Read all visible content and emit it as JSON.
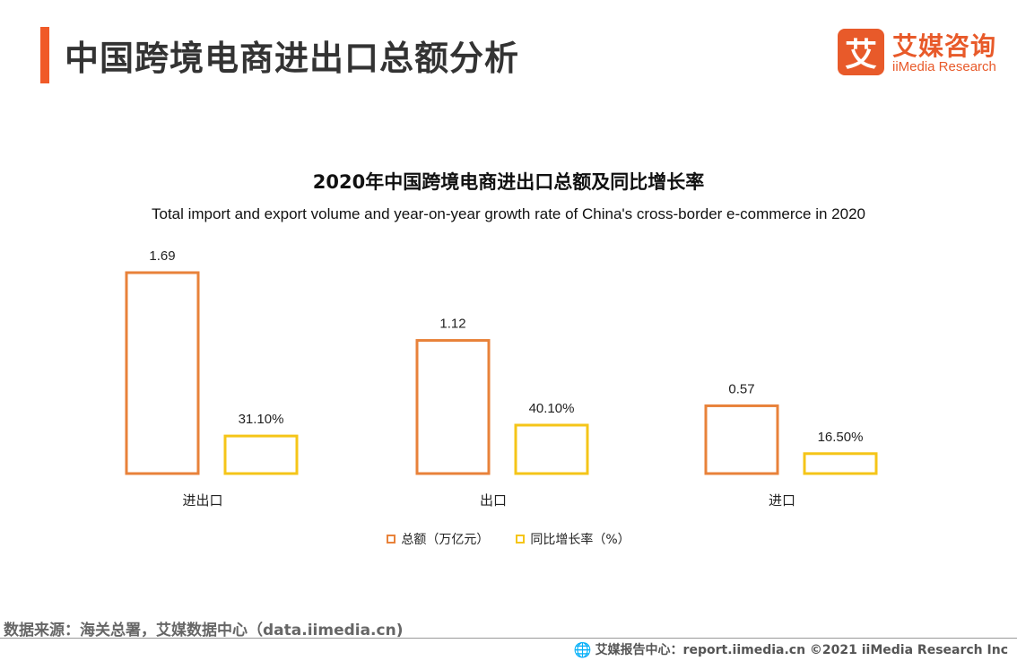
{
  "header": {
    "title": "中国跨境电商进出口总额分析",
    "logo_mark": "艾",
    "logo_cn": "艾媒咨询",
    "logo_en": "iiMedia Research"
  },
  "colors": {
    "accent": "#f05a28",
    "total": "#e8823a",
    "growth": "#f5c518"
  },
  "chart_data": {
    "type": "bar",
    "title": "2020年中国跨境电商进出口总额及同比增长率",
    "subtitle": "Total import and export volume and year-on-year growth rate of China's cross-border e-commerce in 2020",
    "categories": [
      "进出口",
      "出口",
      "进口"
    ],
    "series": [
      {
        "name": "总额（万亿元）",
        "values": [
          1.69,
          1.12,
          0.57
        ],
        "labels": [
          "1.69",
          "1.12",
          "0.57"
        ]
      },
      {
        "name": "同比增长率（%）",
        "values": [
          31.1,
          40.1,
          16.5
        ],
        "labels": [
          "31.10%",
          "40.10%",
          "16.50%"
        ]
      }
    ],
    "legend_position": "bottom"
  },
  "footer": {
    "source": "数据来源：海关总署，艾媒数据中心（data.iimedia.cn)",
    "report": "艾媒报告中心：report.iimedia.cn   ©2021  iiMedia Research  Inc"
  }
}
